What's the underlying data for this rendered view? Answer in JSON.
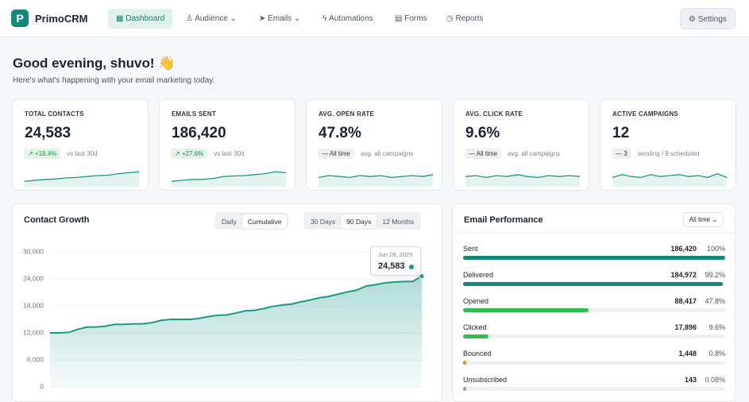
{
  "nav": {
    "brand": "PrimoCRM",
    "items": [
      "Dashboard",
      "Audience",
      "Emails",
      "Automations",
      "Forms",
      "Reports"
    ],
    "settings": "Settings"
  },
  "greeting": {
    "title": "Good evening, shuvo! 👋",
    "subtitle": "Here's what's happening with your email marketing today."
  },
  "kpis": [
    {
      "label": "TOTAL CONTACTS",
      "value": "24,583",
      "badge": "+18.4%",
      "note": "vs last 30d",
      "spark": [
        2,
        2.5,
        3,
        3.2,
        3.8,
        4,
        4.5,
        5,
        5.2,
        6,
        6.5,
        7
      ]
    },
    {
      "label": "EMAILS SENT",
      "value": "186,420",
      "badge": "+27.6%",
      "note": "vs last 30d",
      "spark": [
        2,
        2.5,
        3,
        3,
        3.5,
        4.5,
        4.8,
        5,
        5.5,
        6,
        7,
        6.5
      ]
    },
    {
      "label": "AVG. OPEN RATE",
      "value": "47.8%",
      "badge": "All time",
      "note": "avg. all campaigns",
      "spark": [
        4,
        5,
        4.5,
        4,
        5,
        4.5,
        5,
        4,
        4.5,
        5,
        4.5,
        5.5
      ]
    },
    {
      "label": "AVG. CLICK RATE",
      "value": "9.6%",
      "badge": "All time",
      "note": "avg. all campaigns",
      "spark": [
        4.5,
        5,
        4,
        5,
        4.5,
        5.5,
        4.5,
        4,
        5,
        4.5,
        5,
        4.5
      ]
    },
    {
      "label": "ACTIVE CAMPAIGNS",
      "value": "12",
      "badge": "3",
      "note": "sending / 9 scheduled",
      "spark": [
        4,
        5.5,
        4.5,
        4,
        5.5,
        4.5,
        5,
        5.5,
        4.5,
        5,
        4,
        6,
        4
      ]
    }
  ],
  "chart_data": {
    "type": "area",
    "title": "Contact Growth",
    "modes": [
      "Daily",
      "Cumulative"
    ],
    "ranges": [
      "30 Days",
      "90 Days",
      "12 Months"
    ],
    "color": "#1a9a85",
    "values": [
      12000,
      12000,
      12100,
      12800,
      13300,
      13300,
      13500,
      13900,
      13900,
      14000,
      14000,
      14300,
      14800,
      15000,
      15000,
      15000,
      15200,
      15600,
      15900,
      16000,
      16400,
      16900,
      17000,
      17400,
      17900,
      18200,
      18400,
      18900,
      19300,
      19800,
      20100,
      20600,
      21100,
      21500,
      22400,
      22700,
      23100,
      23300,
      23400,
      23400,
      24583
    ],
    "ylim": [
      0,
      30000
    ],
    "yticks": [
      {
        "value": 0,
        "label": "0"
      },
      {
        "value": 6000,
        "label": "6,000"
      },
      {
        "value": 12000,
        "label": "12,000"
      },
      {
        "value": 18000,
        "label": "18,000"
      },
      {
        "value": 24000,
        "label": "24,000"
      },
      {
        "value": 30000,
        "label": "30,000"
      }
    ],
    "grid": true,
    "tooltip": {
      "date": "Jun 28, 2025",
      "value": "24,583"
    }
  },
  "performance": {
    "title": "Email Performance",
    "filter": "All time",
    "rows": [
      {
        "label": "Sent",
        "count": "186,420",
        "percent": {
          "value": 100,
          "label": "100%"
        },
        "color": "#12877a"
      },
      {
        "label": "Delivered",
        "count": "184,972",
        "percent": {
          "value": 99.2,
          "label": "99.2%"
        },
        "color": "#12877a"
      },
      {
        "label": "Opened",
        "count": "88,417",
        "percent": {
          "value": 47.8,
          "label": "47.8%"
        },
        "color": "#2ebd4f"
      },
      {
        "label": "Clicked",
        "count": "17,896",
        "percent": {
          "value": 9.6,
          "label": "9.6%"
        },
        "color": "#2ebd4f"
      },
      {
        "label": "Bounced",
        "count": "1,448",
        "percent": {
          "value": 0.8,
          "label": "0.8%"
        },
        "color": "#f08a24"
      },
      {
        "label": "Unsubscribed",
        "count": "143",
        "percent": {
          "value": 0.08,
          "label": "0.08%"
        },
        "color": "#9aa3ad"
      }
    ]
  }
}
